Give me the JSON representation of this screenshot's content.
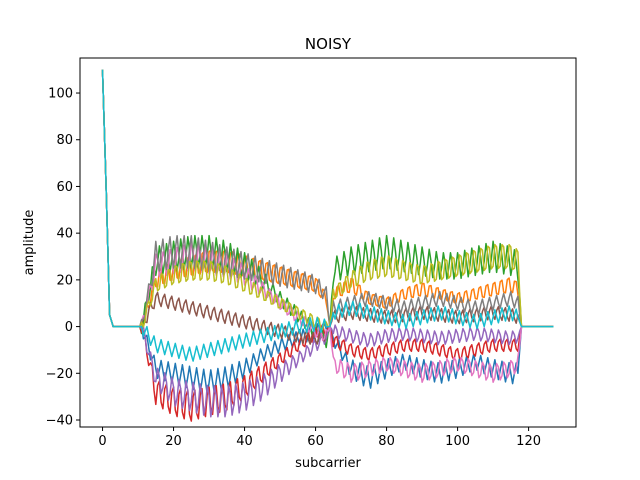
{
  "chart_data": {
    "type": "line",
    "title": "NOISY",
    "xlabel": "subcarrier",
    "ylabel": "amplitude",
    "xlim": [
      -6.35,
      133.35
    ],
    "ylim": [
      -43.0,
      115.0
    ],
    "x_ticks": [
      0,
      20,
      40,
      60,
      80,
      100,
      120
    ],
    "y_ticks": [
      -40,
      -20,
      0,
      20,
      40,
      60,
      80,
      100
    ],
    "x_tick_labels": [
      "0",
      "20",
      "40",
      "60",
      "80",
      "100",
      "120"
    ],
    "y_tick_labels": [
      "−40",
      "−20",
      "0",
      "20",
      "40",
      "60",
      "80",
      "100"
    ],
    "grid": false,
    "legend": "none",
    "x": [
      0,
      1,
      2,
      3,
      11,
      15,
      20,
      25,
      30,
      35,
      40,
      45,
      50,
      55,
      60,
      63,
      64,
      65,
      70,
      75,
      80,
      85,
      90,
      95,
      100,
      105,
      110,
      115,
      117,
      118,
      127
    ],
    "series": [
      {
        "color": "#1f77b4",
        "values": [
          110,
          60,
          5,
          0,
          0,
          -18,
          -20,
          -22,
          -24,
          -22,
          -18,
          -12,
          -8,
          -5,
          -2,
          -1,
          0,
          -5,
          -18,
          -22,
          -18,
          -15,
          -18,
          -20,
          -18,
          -15,
          -18,
          -20,
          -20,
          0,
          0
        ]
      },
      {
        "color": "#ff7f0e",
        "values": [
          110,
          60,
          5,
          0,
          0,
          20,
          24,
          26,
          28,
          28,
          26,
          24,
          22,
          20,
          18,
          12,
          0,
          14,
          18,
          12,
          10,
          14,
          16,
          14,
          12,
          14,
          16,
          18,
          16,
          0,
          0
        ]
      },
      {
        "color": "#2ca02c",
        "values": [
          110,
          60,
          5,
          0,
          0,
          28,
          30,
          32,
          32,
          30,
          26,
          20,
          12,
          5,
          -2,
          -6,
          0,
          24,
          28,
          30,
          32,
          30,
          28,
          26,
          26,
          28,
          30,
          28,
          26,
          0,
          0
        ]
      },
      {
        "color": "#d62728",
        "values": [
          110,
          60,
          5,
          0,
          0,
          -28,
          -32,
          -34,
          -32,
          -30,
          -26,
          -20,
          -14,
          -8,
          -3,
          -1,
          0,
          -6,
          -10,
          -12,
          -10,
          -8,
          -8,
          -10,
          -12,
          -10,
          -8,
          -8,
          -8,
          0,
          0
        ]
      },
      {
        "color": "#9467bd",
        "values": [
          110,
          60,
          5,
          0,
          0,
          -22,
          -28,
          -30,
          -32,
          -32,
          -30,
          -26,
          -20,
          -14,
          -8,
          -4,
          0,
          -2,
          -4,
          -6,
          -4,
          -3,
          -4,
          -5,
          -4,
          -3,
          -4,
          -5,
          -4,
          0,
          0
        ]
      },
      {
        "color": "#8c564b",
        "values": [
          110,
          60,
          5,
          0,
          0,
          12,
          10,
          8,
          6,
          4,
          2,
          0,
          -2,
          -4,
          -5,
          -3,
          0,
          4,
          6,
          5,
          4,
          5,
          6,
          5,
          4,
          5,
          6,
          5,
          4,
          0,
          0
        ]
      },
      {
        "color": "#e377c2",
        "values": [
          110,
          60,
          5,
          0,
          0,
          26,
          28,
          30,
          28,
          26,
          22,
          16,
          10,
          4,
          -2,
          -4,
          0,
          -16,
          -20,
          -18,
          -16,
          -18,
          -20,
          -18,
          -16,
          -18,
          -20,
          -18,
          -16,
          0,
          0
        ]
      },
      {
        "color": "#7f7f7f",
        "values": [
          110,
          60,
          5,
          0,
          0,
          30,
          32,
          32,
          30,
          28,
          26,
          24,
          22,
          20,
          18,
          14,
          0,
          8,
          10,
          12,
          10,
          8,
          10,
          12,
          10,
          8,
          10,
          12,
          10,
          0,
          0
        ]
      },
      {
        "color": "#bcbd22",
        "values": [
          110,
          60,
          5,
          0,
          0,
          18,
          22,
          24,
          24,
          22,
          18,
          14,
          10,
          6,
          2,
          0,
          0,
          14,
          20,
          24,
          26,
          24,
          22,
          24,
          26,
          28,
          30,
          30,
          28,
          0,
          0
        ]
      },
      {
        "color": "#17becf",
        "values": [
          110,
          60,
          5,
          0,
          0,
          -8,
          -10,
          -12,
          -10,
          -8,
          -6,
          -4,
          -2,
          0,
          1,
          0,
          0,
          6,
          8,
          6,
          4,
          2,
          4,
          6,
          4,
          2,
          4,
          6,
          4,
          0,
          0
        ]
      }
    ]
  }
}
